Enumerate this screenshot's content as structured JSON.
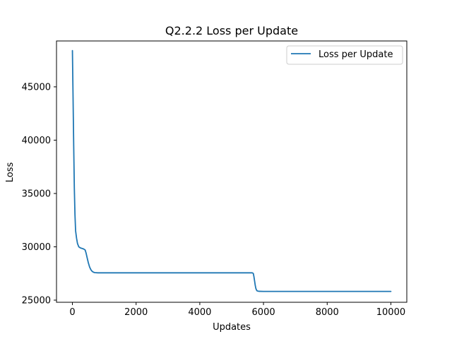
{
  "chart_data": {
    "type": "line",
    "title": "Q2.2.2 Loss per Update",
    "xlabel": "Updates",
    "ylabel": "Loss",
    "xlim": [
      -500,
      10500
    ],
    "ylim": [
      24800,
      49300
    ],
    "xticks": [
      0,
      2000,
      4000,
      6000,
      8000,
      10000
    ],
    "yticks": [
      25000,
      30000,
      35000,
      40000,
      45000
    ],
    "grid": false,
    "legend_position": "top-right",
    "series": [
      {
        "name": "Loss per Update",
        "color": "#1f77b4",
        "x": [
          0,
          20,
          40,
          60,
          80,
          100,
          130,
          160,
          200,
          250,
          300,
          350,
          400,
          430,
          460,
          500,
          540,
          580,
          620,
          660,
          700,
          800,
          1000,
          2000,
          3000,
          4000,
          5000,
          5500,
          5600,
          5650,
          5680,
          5700,
          5720,
          5740,
          5760,
          5780,
          5800,
          5850,
          6000,
          7000,
          8000,
          9000,
          10000
        ],
        "y": [
          48400,
          44000,
          39500,
          35500,
          33000,
          31500,
          30800,
          30300,
          30000,
          29900,
          29850,
          29800,
          29700,
          29400,
          29000,
          28500,
          28100,
          27850,
          27700,
          27620,
          27580,
          27560,
          27560,
          27560,
          27560,
          27560,
          27560,
          27560,
          27560,
          27560,
          27500,
          27200,
          26800,
          26400,
          26100,
          25950,
          25870,
          25830,
          25820,
          25820,
          25820,
          25820,
          25820
        ]
      }
    ]
  }
}
